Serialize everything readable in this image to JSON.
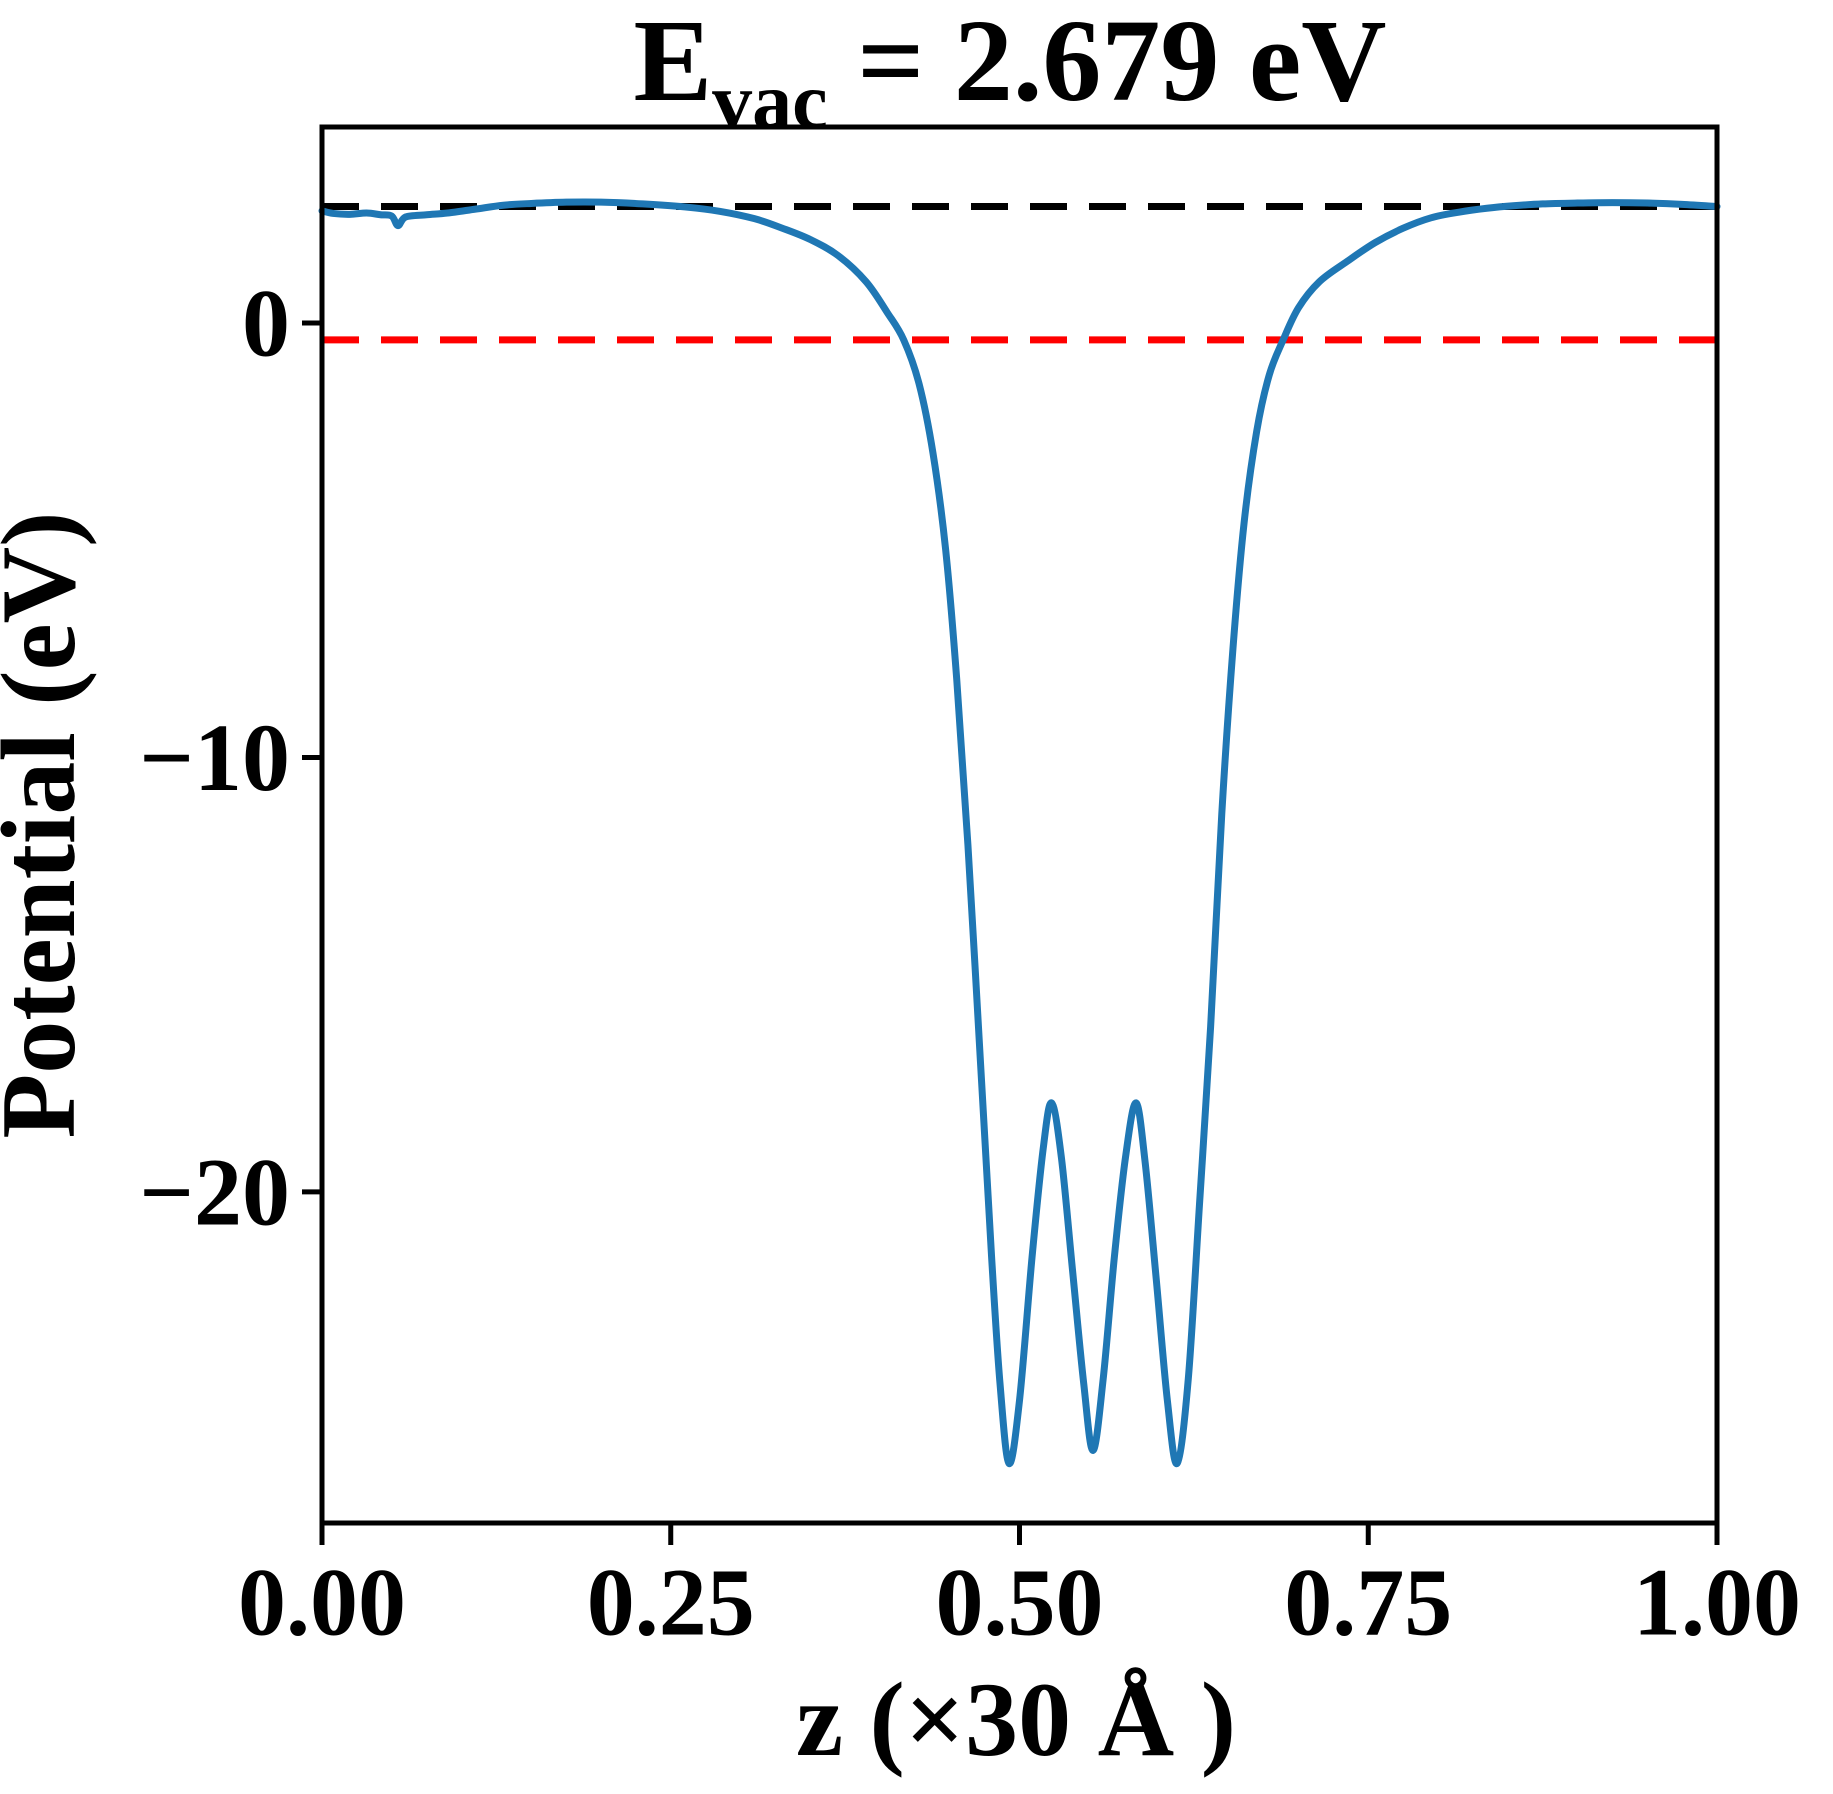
{
  "title": {
    "prefix": "E",
    "subscript": "vac",
    "suffix": " = 2.679 eV"
  },
  "chart_data": {
    "type": "line",
    "title": "E_vac = 2.679 eV",
    "xlabel": "z (×30 Å )",
    "ylabel": "Potential (eV)",
    "grid": false,
    "legend": "none",
    "axes": {
      "xlim": [
        0.0,
        1.0
      ],
      "ylim": [
        -27.62,
        4.51
      ]
    },
    "x_ticks": [
      {
        "value": 0.0,
        "label": "0.00"
      },
      {
        "value": 0.25,
        "label": "0.25"
      },
      {
        "value": 0.5,
        "label": "0.50"
      },
      {
        "value": 0.75,
        "label": "0.75"
      },
      {
        "value": 1.0,
        "label": "1.00"
      }
    ],
    "y_ticks": [
      {
        "value": 0,
        "label": "0"
      },
      {
        "value": -10,
        "label": "−10"
      },
      {
        "value": -20,
        "label": "−20"
      }
    ],
    "hlines": [
      {
        "name": "vacuum-level-line",
        "value": 2.679,
        "color": "#000000",
        "style": "dashed"
      },
      {
        "name": "fermi-level-line",
        "value": -0.39,
        "color": "#ff0000",
        "style": "dashed"
      }
    ],
    "series": [
      {
        "name": "planar-averaged-potential",
        "color": "#1f77b4",
        "points": [
          [
            0.0,
            2.58
          ],
          [
            0.008,
            2.52
          ],
          [
            0.02,
            2.5
          ],
          [
            0.032,
            2.53
          ],
          [
            0.042,
            2.49
          ],
          [
            0.05,
            2.46
          ],
          [
            0.0545,
            2.24
          ],
          [
            0.06,
            2.44
          ],
          [
            0.075,
            2.49
          ],
          [
            0.09,
            2.53
          ],
          [
            0.11,
            2.62
          ],
          [
            0.13,
            2.71
          ],
          [
            0.15,
            2.75
          ],
          [
            0.175,
            2.78
          ],
          [
            0.2,
            2.78
          ],
          [
            0.23,
            2.74
          ],
          [
            0.26,
            2.67
          ],
          [
            0.285,
            2.57
          ],
          [
            0.31,
            2.4
          ],
          [
            0.33,
            2.18
          ],
          [
            0.35,
            1.92
          ],
          [
            0.37,
            1.55
          ],
          [
            0.39,
            0.95
          ],
          [
            0.405,
            0.25
          ],
          [
            0.417,
            -0.39
          ],
          [
            0.428,
            -1.4
          ],
          [
            0.438,
            -3.0
          ],
          [
            0.447,
            -5.2
          ],
          [
            0.455,
            -8.2
          ],
          [
            0.463,
            -12.0
          ],
          [
            0.472,
            -17.0
          ],
          [
            0.48,
            -21.5
          ],
          [
            0.486,
            -24.4
          ],
          [
            0.4925,
            -26.25
          ],
          [
            0.5,
            -24.8
          ],
          [
            0.509,
            -21.5
          ],
          [
            0.517,
            -19.0
          ],
          [
            0.523,
            -17.95
          ],
          [
            0.53,
            -19.2
          ],
          [
            0.538,
            -21.8
          ],
          [
            0.546,
            -24.4
          ],
          [
            0.5527,
            -25.95
          ],
          [
            0.56,
            -24.3
          ],
          [
            0.568,
            -21.5
          ],
          [
            0.576,
            -19.2
          ],
          [
            0.5835,
            -17.95
          ],
          [
            0.59,
            -19.3
          ],
          [
            0.598,
            -22.0
          ],
          [
            0.606,
            -24.8
          ],
          [
            0.613,
            -26.25
          ],
          [
            0.621,
            -24.3
          ],
          [
            0.629,
            -20.3
          ],
          [
            0.637,
            -16.2
          ],
          [
            0.645,
            -11.3
          ],
          [
            0.653,
            -7.5
          ],
          [
            0.661,
            -4.6
          ],
          [
            0.67,
            -2.5
          ],
          [
            0.679,
            -1.2
          ],
          [
            0.689,
            -0.39
          ],
          [
            0.7,
            0.35
          ],
          [
            0.715,
            0.95
          ],
          [
            0.735,
            1.42
          ],
          [
            0.755,
            1.85
          ],
          [
            0.775,
            2.18
          ],
          [
            0.795,
            2.42
          ],
          [
            0.815,
            2.55
          ],
          [
            0.835,
            2.64
          ],
          [
            0.855,
            2.7
          ],
          [
            0.875,
            2.74
          ],
          [
            0.9,
            2.76
          ],
          [
            0.925,
            2.77
          ],
          [
            0.95,
            2.76
          ],
          [
            0.975,
            2.73
          ],
          [
            1.0,
            2.68
          ]
        ]
      }
    ],
    "annotations": {
      "E_vac_eV": "2.679"
    }
  },
  "colors": {
    "curve": "#1f77b4",
    "vacuum_line": "#000000",
    "fermi_line": "#ff0000",
    "background": "#ffffff",
    "axis": "#000000"
  }
}
